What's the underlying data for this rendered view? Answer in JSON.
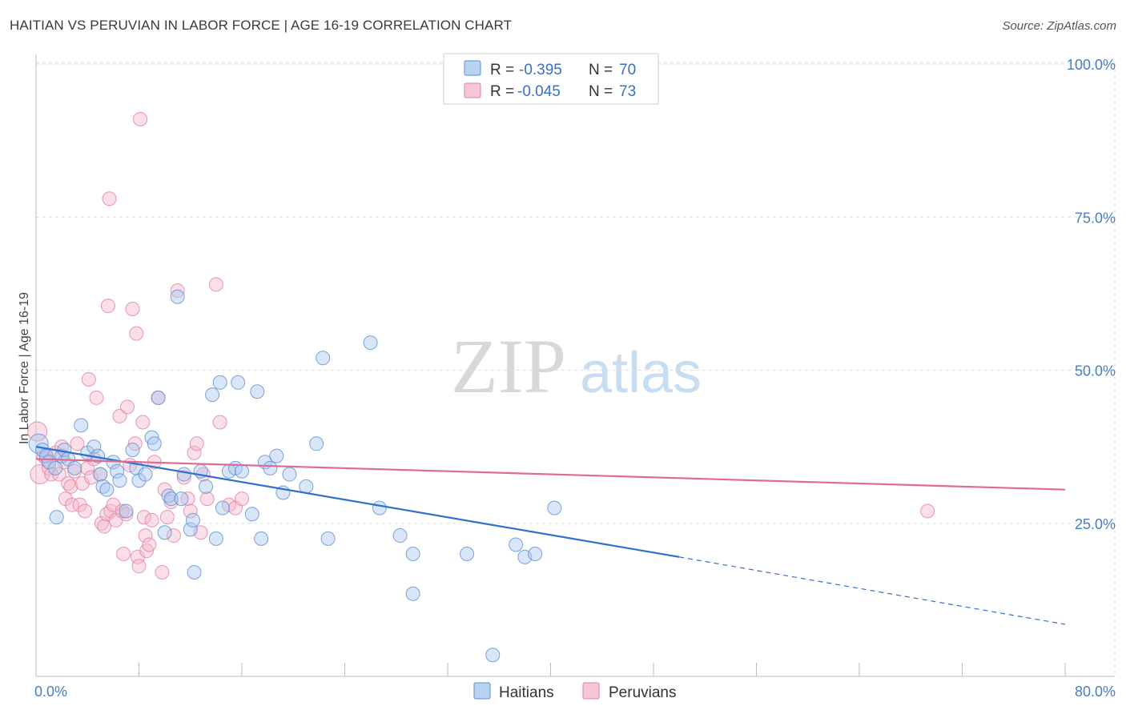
{
  "title": "HAITIAN VS PERUVIAN IN LABOR FORCE | AGE 16-19 CORRELATION CHART",
  "source": "Source: ZipAtlas.com",
  "watermark": {
    "zip": "ZIP",
    "atlas": "atlas"
  },
  "chart_data": {
    "type": "scatter",
    "ylabel": "In Labor Force | Age 16-19",
    "xlim": [
      0,
      80
    ],
    "ylim": [
      0,
      100
    ],
    "x_tick_labels": [
      "0.0%",
      "80.0%"
    ],
    "y_tick_labels": [
      "100.0%",
      "75.0%",
      "50.0%",
      "25.0%"
    ],
    "y_tick_values": [
      100,
      75,
      50,
      25
    ],
    "grid": true,
    "legend_position": "top-center",
    "stats_legend": [
      {
        "r_label": "R =",
        "r_value": "-0.395",
        "n_label": "N =",
        "n_value": "70",
        "color": "#a9c8f0"
      },
      {
        "r_label": "R =",
        "r_value": "-0.045",
        "n_label": "N =",
        "n_value": "73",
        "color": "#f5b8cc"
      }
    ],
    "series": [
      {
        "name": "Haitians",
        "color": "#a9c8f0",
        "stroke": "#5b8fd6",
        "trend": {
          "x0": 0,
          "y0": 37.5,
          "x1": 50,
          "y1": 19.5,
          "dash_to_x": 80,
          "dash_to_y": 8.5,
          "color": "#2f6fd0"
        },
        "points": [
          [
            0.2,
            38
          ],
          [
            0.5,
            37
          ],
          [
            0.8,
            36
          ],
          [
            1,
            35
          ],
          [
            1.5,
            34
          ],
          [
            1.6,
            26
          ],
          [
            2,
            36
          ],
          [
            2.2,
            37
          ],
          [
            2.5,
            35.5
          ],
          [
            3,
            34
          ],
          [
            3.5,
            41
          ],
          [
            4,
            36.5
          ],
          [
            4.5,
            37.5
          ],
          [
            4.8,
            36
          ],
          [
            5,
            33
          ],
          [
            5.2,
            31
          ],
          [
            5.5,
            30.5
          ],
          [
            6,
            35
          ],
          [
            6.3,
            33.5
          ],
          [
            6.5,
            32
          ],
          [
            7,
            27
          ],
          [
            7.5,
            37
          ],
          [
            7.8,
            34
          ],
          [
            8,
            32
          ],
          [
            8.5,
            33
          ],
          [
            9,
            39
          ],
          [
            9.2,
            38
          ],
          [
            9.5,
            45.5
          ],
          [
            10,
            23.5
          ],
          [
            10.3,
            29.5
          ],
          [
            10.5,
            29
          ],
          [
            11,
            62
          ],
          [
            11.3,
            29
          ],
          [
            11.5,
            33
          ],
          [
            12,
            24
          ],
          [
            12.2,
            25.5
          ],
          [
            12.3,
            17
          ],
          [
            12.8,
            33.5
          ],
          [
            13.2,
            31
          ],
          [
            13.7,
            46
          ],
          [
            14,
            22.5
          ],
          [
            14.3,
            48
          ],
          [
            14.5,
            27.5
          ],
          [
            15,
            33.5
          ],
          [
            15.5,
            34
          ],
          [
            15.7,
            48
          ],
          [
            16,
            33.5
          ],
          [
            16.8,
            26.5
          ],
          [
            17.2,
            46.5
          ],
          [
            17.5,
            22.5
          ],
          [
            17.8,
            35
          ],
          [
            18.2,
            34
          ],
          [
            18.7,
            36
          ],
          [
            19.2,
            30
          ],
          [
            19.7,
            33
          ],
          [
            21,
            31
          ],
          [
            21.8,
            38
          ],
          [
            22.3,
            52
          ],
          [
            22.7,
            22.5
          ],
          [
            26,
            54.5
          ],
          [
            26.7,
            27.5
          ],
          [
            28.3,
            23
          ],
          [
            29.3,
            20
          ],
          [
            29.3,
            13.5
          ],
          [
            33.5,
            20
          ],
          [
            35.5,
            3.5
          ],
          [
            37.3,
            21.5
          ],
          [
            38,
            19.5
          ],
          [
            38.8,
            20
          ],
          [
            40.3,
            27.5
          ]
        ]
      },
      {
        "name": "Peruvians",
        "color": "#f5b8cc",
        "stroke": "#e47fa0",
        "trend": {
          "x0": 0,
          "y0": 35.5,
          "x1": 80,
          "y1": 30.5,
          "color": "#e06a92"
        },
        "points": [
          [
            0.1,
            40
          ],
          [
            0.3,
            33
          ],
          [
            0.6,
            36
          ],
          [
            0.8,
            35.5
          ],
          [
            1,
            34
          ],
          [
            1.2,
            33
          ],
          [
            1.5,
            36.5
          ],
          [
            1.8,
            33
          ],
          [
            2,
            37.5
          ],
          [
            2.2,
            35
          ],
          [
            2.3,
            29
          ],
          [
            2.5,
            31.5
          ],
          [
            2.7,
            31
          ],
          [
            2.8,
            28
          ],
          [
            3,
            33.5
          ],
          [
            3.2,
            38
          ],
          [
            3.4,
            28
          ],
          [
            3.6,
            31.5
          ],
          [
            3.8,
            27
          ],
          [
            4,
            34
          ],
          [
            4.1,
            48.5
          ],
          [
            4.3,
            32.5
          ],
          [
            4.5,
            35.5
          ],
          [
            4.7,
            45.5
          ],
          [
            5,
            33
          ],
          [
            5.1,
            25
          ],
          [
            5.3,
            24.5
          ],
          [
            5.5,
            26.5
          ],
          [
            5.6,
            60.5
          ],
          [
            5.7,
            78
          ],
          [
            5.8,
            27
          ],
          [
            6,
            28
          ],
          [
            6.2,
            25.5
          ],
          [
            6.5,
            42.5
          ],
          [
            6.7,
            27
          ],
          [
            6.8,
            20
          ],
          [
            7,
            26.5
          ],
          [
            7.1,
            44
          ],
          [
            7.3,
            34.5
          ],
          [
            7.5,
            60
          ],
          [
            7.7,
            38
          ],
          [
            7.8,
            56
          ],
          [
            7.9,
            19.5
          ],
          [
            8,
            18
          ],
          [
            8.1,
            91
          ],
          [
            8.3,
            41.5
          ],
          [
            8.4,
            26
          ],
          [
            8.5,
            23
          ],
          [
            8.6,
            20.5
          ],
          [
            8.8,
            21.5
          ],
          [
            9,
            25.5
          ],
          [
            9.2,
            35
          ],
          [
            9.5,
            45.5
          ],
          [
            9.8,
            17
          ],
          [
            10,
            30.5
          ],
          [
            10.2,
            26
          ],
          [
            10.5,
            28.5
          ],
          [
            10.7,
            23
          ],
          [
            11,
            63
          ],
          [
            11.5,
            32.5
          ],
          [
            11.8,
            29
          ],
          [
            12,
            27
          ],
          [
            12.3,
            36.5
          ],
          [
            12.5,
            38
          ],
          [
            12.8,
            23.5
          ],
          [
            13,
            33
          ],
          [
            13.3,
            29
          ],
          [
            14,
            64
          ],
          [
            14.3,
            41.5
          ],
          [
            15,
            28
          ],
          [
            15.5,
            27.5
          ],
          [
            16,
            29
          ],
          [
            69.3,
            27
          ]
        ]
      }
    ]
  }
}
